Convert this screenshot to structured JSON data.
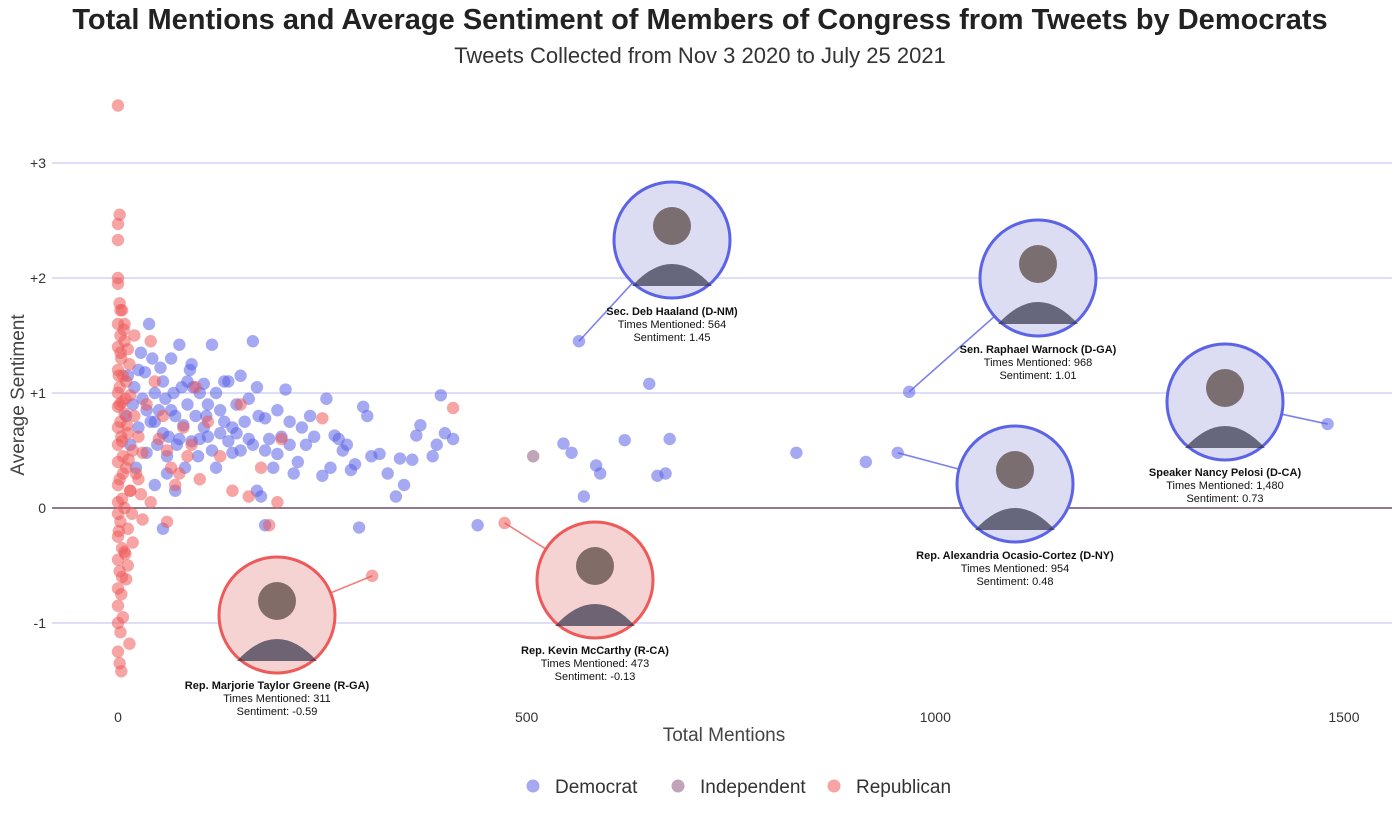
{
  "title": "Total Mentions and Average Sentiment of Members of Congress from Tweets by Democrats",
  "subtitle": "Tweets Collected from Nov 3 2020 to July 25 2021",
  "colors": {
    "Democrat": "#5b63e6",
    "Independent": "#8e5a7c",
    "Republican": "#ee5a5a",
    "gridline": "#c9c9f5",
    "zeroline": "#6a4a6a"
  },
  "chart_data": {
    "type": "scatter",
    "xlabel": "Total Mentions",
    "ylabel": "Average Sentiment",
    "xlim": [
      -20,
      1500
    ],
    "ylim": [
      -1.55,
      3.6
    ],
    "x_ticks": [
      {
        "value": 0,
        "label": "0"
      },
      {
        "value": 500,
        "label": "500"
      },
      {
        "value": 1000,
        "label": "1000"
      },
      {
        "value": 1500,
        "label": "1500"
      }
    ],
    "y_ticks": [
      {
        "value": 3,
        "label": "+3"
      },
      {
        "value": 2,
        "label": "+2"
      },
      {
        "value": 1,
        "label": "+1"
      },
      {
        "value": 0,
        "label": "0"
      },
      {
        "value": -1,
        "label": "-1"
      }
    ],
    "grid": "horizontal",
    "legend_position": "bottom",
    "legend": [
      "Democrat",
      "Independent",
      "Republican"
    ],
    "series": [
      {
        "name": "Democrat",
        "points": [
          [
            564,
            1.45
          ],
          [
            968,
            1.01
          ],
          [
            1480,
            0.73
          ],
          [
            954,
            0.48
          ],
          [
            650,
            1.08
          ],
          [
            675,
            0.6
          ],
          [
            620,
            0.59
          ],
          [
            585,
            0.37
          ],
          [
            590,
            0.3
          ],
          [
            660,
            0.28
          ],
          [
            670,
            0.3
          ],
          [
            545,
            0.56
          ],
          [
            555,
            0.48
          ],
          [
            570,
            0.1
          ],
          [
            830,
            0.48
          ],
          [
            915,
            0.4
          ],
          [
            440,
            -0.15
          ],
          [
            295,
            -0.17
          ],
          [
            395,
            0.98
          ],
          [
            410,
            0.6
          ],
          [
            400,
            0.65
          ],
          [
            385,
            0.45
          ],
          [
            390,
            0.55
          ],
          [
            370,
            0.72
          ],
          [
            365,
            0.63
          ],
          [
            360,
            0.42
          ],
          [
            345,
            0.43
          ],
          [
            340,
            0.1
          ],
          [
            320,
            0.47
          ],
          [
            305,
            0.8
          ],
          [
            300,
            0.88
          ],
          [
            290,
            0.38
          ],
          [
            285,
            0.33
          ],
          [
            275,
            0.5
          ],
          [
            270,
            0.6
          ],
          [
            265,
            0.63
          ],
          [
            260,
            0.35
          ],
          [
            250,
            0.28
          ],
          [
            240,
            0.62
          ],
          [
            230,
            0.55
          ],
          [
            225,
            0.7
          ],
          [
            220,
            0.4
          ],
          [
            215,
            0.3
          ],
          [
            210,
            0.55
          ],
          [
            205,
            1.03
          ],
          [
            200,
            0.62
          ],
          [
            195,
            0.47
          ],
          [
            190,
            0.35
          ],
          [
            185,
            0.6
          ],
          [
            180,
            0.78
          ],
          [
            175,
            0.1
          ],
          [
            172,
            0.8
          ],
          [
            165,
            0.55
          ],
          [
            160,
            0.6
          ],
          [
            155,
            0.75
          ],
          [
            150,
            0.5
          ],
          [
            150,
            1.15
          ],
          [
            145,
            0.9
          ],
          [
            140,
            0.48
          ],
          [
            135,
            0.58
          ],
          [
            130,
            0.75
          ],
          [
            125,
            0.85
          ],
          [
            120,
            0.35
          ],
          [
            115,
            0.5
          ],
          [
            110,
            0.62
          ],
          [
            108,
            0.8
          ],
          [
            105,
            1.08
          ],
          [
            100,
            1.0
          ],
          [
            98,
            0.45
          ],
          [
            95,
            0.8
          ],
          [
            92,
            1.05
          ],
          [
            90,
            0.58
          ],
          [
            88,
            1.2
          ],
          [
            85,
            0.9
          ],
          [
            82,
            0.35
          ],
          [
            80,
            0.72
          ],
          [
            78,
            1.05
          ],
          [
            75,
            1.42
          ],
          [
            72,
            0.55
          ],
          [
            70,
            0.8
          ],
          [
            68,
            1.0
          ],
          [
            65,
            1.3
          ],
          [
            62,
            0.62
          ],
          [
            60,
            0.45
          ],
          [
            58,
            0.95
          ],
          [
            55,
            1.1
          ],
          [
            52,
            1.22
          ],
          [
            50,
            0.85
          ],
          [
            48,
            0.55
          ],
          [
            45,
            1.0
          ],
          [
            42,
            1.3
          ],
          [
            40,
            0.75
          ],
          [
            38,
            1.6
          ],
          [
            35,
            0.48
          ],
          [
            33,
            1.18
          ],
          [
            30,
            0.95
          ],
          [
            28,
            1.35
          ],
          [
            25,
            0.7
          ],
          [
            22,
            0.35
          ],
          [
            20,
            1.05
          ],
          [
            18,
            0.9
          ],
          [
            15,
            0.55
          ],
          [
            12,
            1.15
          ],
          [
            10,
            0.8
          ],
          [
            45,
            0.2
          ],
          [
            55,
            -0.18
          ],
          [
            60,
            0.3
          ],
          [
            70,
            0.15
          ],
          [
            85,
            1.1
          ],
          [
            100,
            0.6
          ],
          [
            110,
            0.9
          ],
          [
            120,
            1.0
          ],
          [
            130,
            1.1
          ],
          [
            140,
            0.7
          ],
          [
            160,
            0.95
          ],
          [
            170,
            1.05
          ],
          [
            180,
            0.5
          ],
          [
            195,
            0.85
          ],
          [
            210,
            0.75
          ],
          [
            235,
            0.8
          ],
          [
            255,
            0.95
          ],
          [
            280,
            0.55
          ],
          [
            310,
            0.45
          ],
          [
            330,
            0.3
          ],
          [
            350,
            0.2
          ],
          [
            170,
            0.15
          ],
          [
            180,
            -0.15
          ],
          [
            165,
            1.45
          ],
          [
            135,
            1.1
          ],
          [
            90,
            1.25
          ],
          [
            115,
            1.42
          ],
          [
            145,
            0.65
          ],
          [
            125,
            0.65
          ],
          [
            105,
            0.7
          ],
          [
            75,
            0.6
          ],
          [
            65,
            0.85
          ],
          [
            55,
            0.65
          ],
          [
            45,
            0.75
          ],
          [
            35,
            0.85
          ],
          [
            25,
            1.2
          ]
        ]
      },
      {
        "name": "Independent",
        "points": [
          [
            508,
            0.45
          ]
        ]
      },
      {
        "name": "Republican",
        "points": [
          [
            311,
            -0.59
          ],
          [
            473,
            -0.13
          ],
          [
            410,
            0.87
          ],
          [
            0,
            3.5
          ],
          [
            2,
            2.55
          ],
          [
            0,
            2.47
          ],
          [
            0,
            2.33
          ],
          [
            0,
            2.0
          ],
          [
            2,
            1.78
          ],
          [
            5,
            1.72
          ],
          [
            0,
            1.6
          ],
          [
            3,
            1.5
          ],
          [
            8,
            1.45
          ],
          [
            0,
            1.4
          ],
          [
            12,
            1.38
          ],
          [
            4,
            1.3
          ],
          [
            0,
            1.2
          ],
          [
            6,
            1.15
          ],
          [
            10,
            1.1
          ],
          [
            2,
            1.05
          ],
          [
            0,
            1.0
          ],
          [
            15,
            0.98
          ],
          [
            5,
            0.92
          ],
          [
            0,
            0.88
          ],
          [
            8,
            0.82
          ],
          [
            20,
            0.8
          ],
          [
            3,
            0.75
          ],
          [
            0,
            0.7
          ],
          [
            12,
            0.65
          ],
          [
            25,
            0.62
          ],
          [
            5,
            0.58
          ],
          [
            0,
            0.55
          ],
          [
            18,
            0.5
          ],
          [
            30,
            0.48
          ],
          [
            6,
            0.45
          ],
          [
            0,
            0.4
          ],
          [
            10,
            0.35
          ],
          [
            22,
            0.3
          ],
          [
            2,
            0.25
          ],
          [
            0,
            0.2
          ],
          [
            15,
            0.15
          ],
          [
            28,
            0.12
          ],
          [
            5,
            0.08
          ],
          [
            0,
            0.05
          ],
          [
            8,
            0.0
          ],
          [
            0,
            -0.05
          ],
          [
            3,
            -0.12
          ],
          [
            12,
            -0.18
          ],
          [
            0,
            -0.25
          ],
          [
            5,
            -0.35
          ],
          [
            8,
            -0.38
          ],
          [
            0,
            -0.45
          ],
          [
            2,
            -0.55
          ],
          [
            10,
            -0.62
          ],
          [
            0,
            -0.7
          ],
          [
            4,
            -0.75
          ],
          [
            0,
            -0.85
          ],
          [
            6,
            -0.95
          ],
          [
            0,
            -1.0
          ],
          [
            3,
            -1.08
          ],
          [
            14,
            -1.18
          ],
          [
            0,
            -1.25
          ],
          [
            2,
            -1.35
          ],
          [
            4,
            -1.42
          ],
          [
            35,
            0.9
          ],
          [
            40,
            1.45
          ],
          [
            45,
            1.1
          ],
          [
            50,
            0.6
          ],
          [
            55,
            0.8
          ],
          [
            60,
            0.5
          ],
          [
            65,
            0.35
          ],
          [
            70,
            0.2
          ],
          [
            75,
            0.3
          ],
          [
            80,
            0.7
          ],
          [
            85,
            0.45
          ],
          [
            90,
            0.55
          ],
          [
            95,
            1.05
          ],
          [
            100,
            0.25
          ],
          [
            110,
            0.75
          ],
          [
            125,
            0.45
          ],
          [
            140,
            0.15
          ],
          [
            150,
            0.9
          ],
          [
            160,
            0.1
          ],
          [
            175,
            0.35
          ],
          [
            185,
            -0.15
          ],
          [
            195,
            0.05
          ],
          [
            200,
            0.6
          ],
          [
            250,
            0.78
          ],
          [
            60,
            -0.12
          ],
          [
            40,
            0.05
          ],
          [
            30,
            -0.1
          ],
          [
            25,
            0.25
          ],
          [
            18,
            -0.3
          ],
          [
            12,
            -0.5
          ],
          [
            8,
            1.6
          ],
          [
            14,
            1.25
          ],
          [
            20,
            1.5
          ],
          [
            6,
            0.3
          ],
          [
            4,
            0.62
          ],
          [
            2,
            0.9
          ],
          [
            1,
            1.15
          ],
          [
            3,
            1.35
          ],
          [
            7,
            1.55
          ],
          [
            9,
            0.95
          ],
          [
            11,
            0.72
          ],
          [
            13,
            0.42
          ],
          [
            15,
            0.15
          ],
          [
            17,
            -0.05
          ],
          [
            1,
            -0.2
          ],
          [
            5,
            -0.6
          ],
          [
            9,
            -0.4
          ],
          [
            3,
            1.72
          ],
          [
            0,
            1.95
          ]
        ]
      }
    ],
    "annotations": [
      {
        "name": "Sec. Deb Haaland (D-NM)",
        "line2": "Times Mentioned: 564",
        "line3": "Sentiment: 1.45",
        "party": "Democrat",
        "x": 564,
        "y": 1.45
      },
      {
        "name": "Sen. Raphael Warnock (D-GA)",
        "line2": "Times Mentioned: 968",
        "line3": "Sentiment: 1.01",
        "party": "Democrat",
        "x": 968,
        "y": 1.01
      },
      {
        "name": "Speaker Nancy Pelosi (D-CA)",
        "line2": "Times Mentioned: 1,480",
        "line3": "Sentiment: 0.73",
        "party": "Democrat",
        "x": 1480,
        "y": 0.73
      },
      {
        "name": "Rep. Alexandria Ocasio-Cortez (D-NY)",
        "line2": "Times Mentioned: 954",
        "line3": "Sentiment: 0.48",
        "party": "Democrat",
        "x": 954,
        "y": 0.48
      },
      {
        "name": "Rep. Kevin McCarthy (R-CA)",
        "line2": "Times Mentioned: 473",
        "line3": "Sentiment: -0.13",
        "party": "Republican",
        "x": 473,
        "y": -0.13
      },
      {
        "name": "Rep. Marjorie Taylor Greene (R-GA)",
        "line2": "Times Mentioned: 311",
        "line3": "Sentiment: -0.59",
        "party": "Republican",
        "x": 311,
        "y": -0.59
      }
    ]
  }
}
